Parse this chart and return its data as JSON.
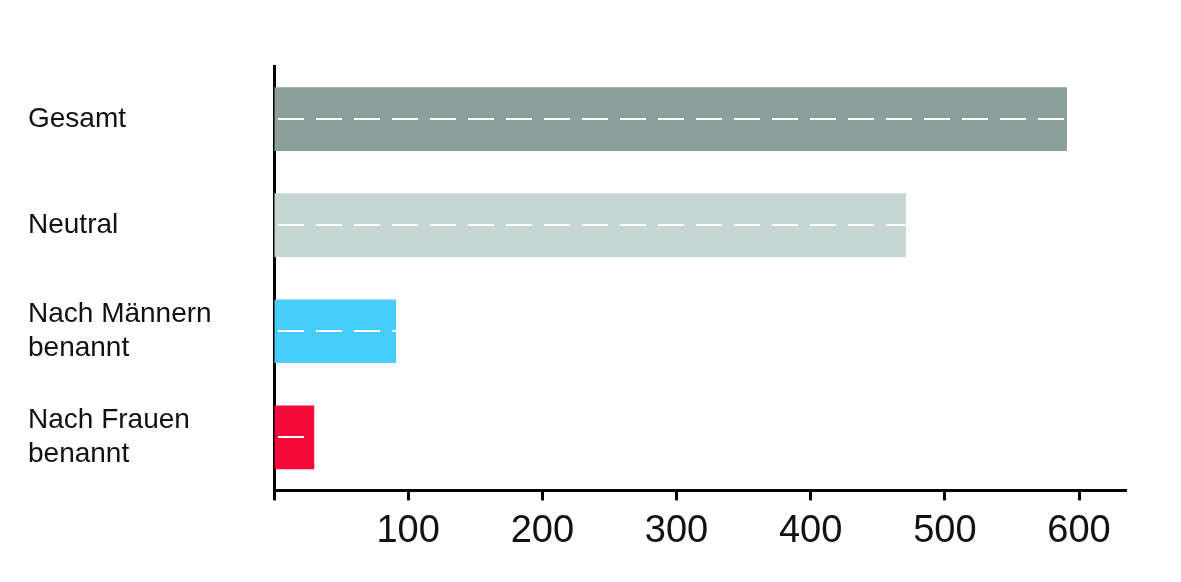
{
  "chart_data": {
    "type": "bar",
    "orientation": "horizontal",
    "categories": [
      "Gesamt",
      "Neutral",
      "Nach Männern benannt",
      "Nach Frauen benannt"
    ],
    "values": [
      591,
      471,
      91,
      30
    ],
    "colors": [
      "#8a9e9a",
      "#c5d5d2",
      "#47cdfc",
      "#f5083a"
    ],
    "xlim": [
      0,
      635
    ],
    "xticks": [
      {
        "value": 0,
        "label": null
      },
      100,
      200,
      300,
      400,
      500,
      600
    ],
    "grid": false,
    "legend": false
  }
}
